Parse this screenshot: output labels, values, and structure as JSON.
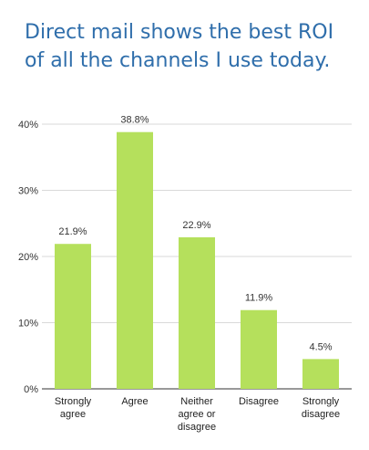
{
  "chart_data": {
    "type": "bar",
    "title_lines": [
      "Direct mail shows the best ROI",
      "of all the channels I use today."
    ],
    "categories": [
      [
        "Strongly",
        "agree"
      ],
      [
        "Agree"
      ],
      [
        "Neither",
        "agree or",
        "disagree"
      ],
      [
        "Disagree"
      ],
      [
        "Strongly",
        "disagree"
      ]
    ],
    "values": [
      21.9,
      38.8,
      22.9,
      11.9,
      4.5
    ],
    "data_labels": [
      "21.9%",
      "38.8%",
      "22.9%",
      "11.9%",
      "4.5%"
    ],
    "yticks": [
      0,
      10,
      20,
      30,
      40
    ],
    "ytick_labels": [
      "0%",
      "10%",
      "20%",
      "30%",
      "40%"
    ],
    "ylim": [
      0,
      40
    ],
    "grid": true,
    "xlabel": "",
    "ylabel": "",
    "colors": {
      "bar": "#b5e05c",
      "title": "#2f6eab",
      "grid": "#d9d9d9",
      "axis": "#333333"
    }
  }
}
